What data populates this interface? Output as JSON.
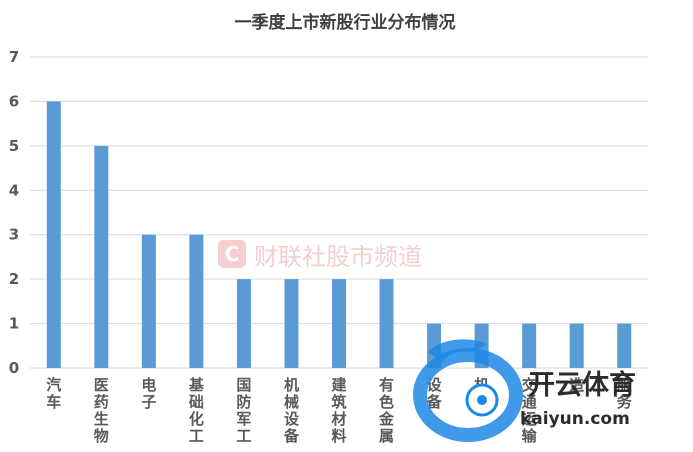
{
  "chart_data": {
    "type": "bar",
    "title": "一季度上市新股行业分布情况",
    "categories": [
      "汽车",
      "医药生物",
      "电子",
      "基础化工",
      "国防军工",
      "机械设备",
      "建筑材料",
      "有色金属",
      "设备",
      "机",
      "交通运输",
      "造",
      "服务"
    ],
    "values": [
      6,
      5,
      3,
      3,
      2,
      2,
      2,
      2,
      1,
      1,
      1,
      1,
      1
    ],
    "ylim": [
      0,
      7
    ],
    "yticks": [
      0,
      1,
      2,
      3,
      4,
      5,
      6,
      7
    ],
    "xlabel": "",
    "ylabel": "",
    "grid": true,
    "bar_color": "#5b9bd5",
    "grid_color": "#d9d9d9"
  },
  "watermark": {
    "logo_letter": "C",
    "text": "财联社股市频道",
    "color": "#f4c9c9"
  },
  "brand": {
    "name_cn": "开云体育",
    "name_en": "kaiyun.com",
    "color": "#1e88e5"
  }
}
